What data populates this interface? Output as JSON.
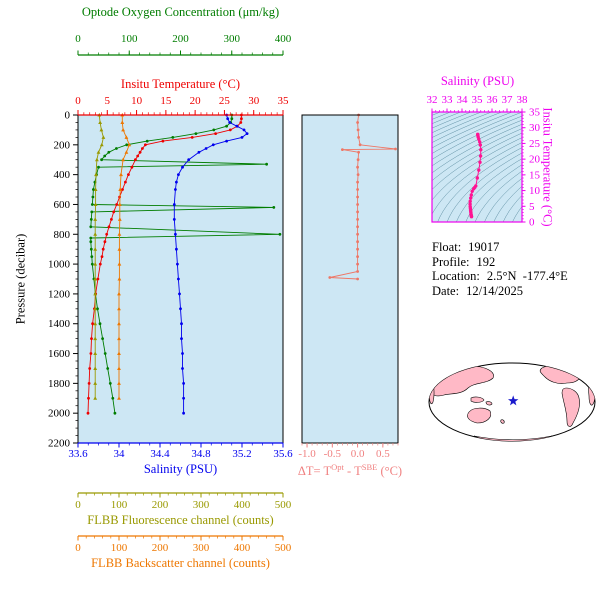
{
  "info": {
    "rows": [
      {
        "label": "Float:",
        "value": "19017"
      },
      {
        "label": "Profile:",
        "value": "192"
      },
      {
        "label": "Location:",
        "value": "2.5°N  -177.4°E"
      },
      {
        "label": "Date:",
        "value": "12/14/2025"
      }
    ]
  },
  "map": {
    "land_color": "#ffb9c6",
    "ocean_color": "#ffffff",
    "outline_color": "#000000",
    "star_color": "#1a1acc",
    "star_lon": -177.4,
    "star_lat": 2.5,
    "center_lon": 180
  },
  "chart_data": [
    {
      "id": "profile",
      "type": "line",
      "background": "#cde7f4",
      "ylabel": "Pressure (decibar)",
      "ylim": [
        0,
        2200
      ],
      "yticks": [
        0,
        200,
        400,
        600,
        800,
        1000,
        1200,
        1400,
        1600,
        1800,
        2000,
        2200
      ],
      "series": [
        {
          "name": "Optode Oxygen Concentration (μm/kg)",
          "color": "#007d00",
          "marker": "circle",
          "xlim": [
            0,
            400
          ],
          "minor": 20,
          "ticks": [
            [
              0,
              "0"
            ],
            [
              100,
              "100"
            ],
            [
              200,
              "200"
            ],
            [
              300,
              "300"
            ],
            [
              400,
              "400"
            ]
          ],
          "points": [
            [
              0,
              300
            ],
            [
              25,
              300
            ],
            [
              50,
              298
            ],
            [
              75,
              290
            ],
            [
              100,
              265
            ],
            [
              125,
              230
            ],
            [
              150,
              185
            ],
            [
              175,
              135
            ],
            [
              200,
              95
            ],
            [
              225,
              75
            ],
            [
              250,
              60
            ],
            [
              275,
              52
            ],
            [
              300,
              46
            ],
            [
              330,
              368
            ],
            [
              350,
              40
            ],
            [
              400,
              36
            ],
            [
              450,
              33
            ],
            [
              500,
              30
            ],
            [
              550,
              29
            ],
            [
              600,
              28
            ],
            [
              620,
              382
            ],
            [
              650,
              27
            ],
            [
              700,
              26
            ],
            [
              750,
              25
            ],
            [
              800,
              394
            ],
            [
              825,
              25
            ],
            [
              850,
              25
            ],
            [
              900,
              26
            ],
            [
              950,
              27
            ],
            [
              1000,
              28
            ],
            [
              1100,
              31
            ],
            [
              1200,
              34
            ],
            [
              1300,
              38
            ],
            [
              1400,
              43
            ],
            [
              1500,
              48
            ],
            [
              1600,
              53
            ],
            [
              1700,
              58
            ],
            [
              1800,
              63
            ],
            [
              1900,
              68
            ],
            [
              2000,
              72
            ]
          ]
        },
        {
          "name": "Insitu Temperature (°C)",
          "color": "#ee0000",
          "marker": "circle",
          "xlim": [
            0,
            35
          ],
          "minor": 1,
          "ticks": [
            [
              0,
              "0"
            ],
            [
              5,
              "5"
            ],
            [
              10,
              "10"
            ],
            [
              15,
              "15"
            ],
            [
              20,
              "20"
            ],
            [
              25,
              "25"
            ],
            [
              30,
              "30"
            ],
            [
              35,
              "35"
            ]
          ],
          "points": [
            [
              0,
              27.9
            ],
            [
              25,
              27.9
            ],
            [
              50,
              27.8
            ],
            [
              75,
              27.2
            ],
            [
              100,
              26.0
            ],
            [
              125,
              23.5
            ],
            [
              150,
              19.5
            ],
            [
              175,
              14.5
            ],
            [
              200,
              11.5
            ],
            [
              225,
              11.0
            ],
            [
              250,
              10.6
            ],
            [
              275,
              10.2
            ],
            [
              300,
              9.8
            ],
            [
              350,
              9.2
            ],
            [
              400,
              8.6
            ],
            [
              450,
              8.1
            ],
            [
              500,
              7.6
            ],
            [
              550,
              7.1
            ],
            [
              600,
              6.6
            ],
            [
              650,
              6.1
            ],
            [
              700,
              5.7
            ],
            [
              750,
              5.3
            ],
            [
              800,
              4.9
            ],
            [
              850,
              4.6
            ],
            [
              900,
              4.3
            ],
            [
              950,
              4.1
            ],
            [
              1000,
              3.8
            ],
            [
              1100,
              3.4
            ],
            [
              1200,
              3.0
            ],
            [
              1300,
              2.8
            ],
            [
              1400,
              2.5
            ],
            [
              1500,
              2.3
            ],
            [
              1600,
              2.2
            ],
            [
              1700,
              2.0
            ],
            [
              1800,
              1.9
            ],
            [
              1900,
              1.8
            ],
            [
              2000,
              1.7
            ]
          ]
        },
        {
          "name": "Salinity (PSU)",
          "color": "#0000ee",
          "marker": "circle",
          "xlim": [
            33.6,
            35.6
          ],
          "minor": 0.1,
          "ticks": [
            [
              33.6,
              "33.6"
            ],
            [
              34,
              "34"
            ],
            [
              34.4,
              "34.4"
            ],
            [
              34.8,
              "34.8"
            ],
            [
              35.2,
              "35.2"
            ],
            [
              35.6,
              "35.6"
            ]
          ],
          "points": [
            [
              0,
              35.05
            ],
            [
              25,
              35.06
            ],
            [
              50,
              35.08
            ],
            [
              75,
              35.15
            ],
            [
              100,
              35.22
            ],
            [
              125,
              35.25
            ],
            [
              150,
              35.2
            ],
            [
              175,
              35.05
            ],
            [
              200,
              34.92
            ],
            [
              225,
              34.85
            ],
            [
              250,
              34.78
            ],
            [
              300,
              34.68
            ],
            [
              350,
              34.62
            ],
            [
              400,
              34.58
            ],
            [
              450,
              34.56
            ],
            [
              500,
              34.55
            ],
            [
              600,
              34.54
            ],
            [
              700,
              34.54
            ],
            [
              800,
              34.55
            ],
            [
              900,
              34.56
            ],
            [
              1000,
              34.57
            ],
            [
              1100,
              34.58
            ],
            [
              1200,
              34.59
            ],
            [
              1300,
              34.6
            ],
            [
              1400,
              34.61
            ],
            [
              1500,
              34.61
            ],
            [
              1600,
              34.62
            ],
            [
              1700,
              34.62
            ],
            [
              1800,
              34.63
            ],
            [
              1900,
              34.63
            ],
            [
              2000,
              34.63
            ]
          ]
        },
        {
          "name": "FLBB Fluorescence channel (counts)",
          "color": "#999900",
          "marker": "triangle",
          "xlim": [
            0,
            500
          ],
          "minor": 20,
          "ticks": [
            [
              0,
              "0"
            ],
            [
              100,
              "100"
            ],
            [
              200,
              "200"
            ],
            [
              300,
              "300"
            ],
            [
              400,
              "400"
            ],
            [
              500,
              "500"
            ]
          ],
          "points": [
            [
              0,
              52
            ],
            [
              50,
              54
            ],
            [
              100,
              57
            ],
            [
              150,
              62
            ],
            [
              200,
              58
            ],
            [
              250,
              50
            ],
            [
              300,
              46
            ],
            [
              400,
              44
            ],
            [
              500,
              43
            ],
            [
              600,
              43
            ],
            [
              700,
              42
            ],
            [
              800,
              42
            ],
            [
              900,
              42
            ],
            [
              1000,
              42
            ],
            [
              1100,
              42
            ],
            [
              1200,
              42
            ],
            [
              1300,
              42
            ],
            [
              1400,
              42
            ],
            [
              1500,
              42
            ],
            [
              1600,
              42
            ],
            [
              1700,
              42
            ],
            [
              1800,
              42
            ],
            [
              1900,
              42
            ]
          ]
        },
        {
          "name": "FLBB Backscatter channel (counts)",
          "color": "#ee7700",
          "marker": "triangle",
          "xlim": [
            0,
            500
          ],
          "minor": 20,
          "ticks": [
            [
              0,
              "0"
            ],
            [
              100,
              "100"
            ],
            [
              200,
              "200"
            ],
            [
              300,
              "300"
            ],
            [
              400,
              "400"
            ],
            [
              500,
              "500"
            ]
          ],
          "points": [
            [
              0,
              108
            ],
            [
              50,
              108
            ],
            [
              100,
              110
            ],
            [
              150,
              118
            ],
            [
              200,
              125
            ],
            [
              250,
              118
            ],
            [
              300,
              110
            ],
            [
              400,
              105
            ],
            [
              500,
              103
            ],
            [
              600,
              102
            ],
            [
              700,
              102
            ],
            [
              800,
              101
            ],
            [
              900,
              101
            ],
            [
              1000,
              101
            ],
            [
              1100,
              101
            ],
            [
              1200,
              100
            ],
            [
              1300,
              100
            ],
            [
              1400,
              100
            ],
            [
              1500,
              100
            ],
            [
              1600,
              100
            ],
            [
              1700,
              100
            ],
            [
              1800,
              100
            ],
            [
              1900,
              100
            ]
          ]
        }
      ]
    },
    {
      "id": "delta_t",
      "type": "line",
      "background": "#cde7f4",
      "xlabel_parts": {
        "pre": "ΔT= T",
        "sup1": "Opt",
        "mid": " - T",
        "sup2": "SBE",
        "post": " (°C)"
      },
      "color": "#ee7766",
      "tick_color": "#f08080",
      "xlim": [
        -1.1,
        0.8
      ],
      "minor": 0.1,
      "ticks": [
        [
          -1.0,
          "-1.0"
        ],
        [
          -0.5,
          "-0.5"
        ],
        [
          0.0,
          "0.0"
        ],
        [
          0.5,
          "0.5"
        ]
      ],
      "ylim": [
        0,
        2200
      ],
      "points": [
        [
          0,
          0.02
        ],
        [
          50,
          0.0
        ],
        [
          100,
          0.01
        ],
        [
          150,
          0.02
        ],
        [
          200,
          0.05
        ],
        [
          228,
          0.75
        ],
        [
          232,
          -0.3
        ],
        [
          250,
          0.02
        ],
        [
          300,
          0.01
        ],
        [
          350,
          0.0
        ],
        [
          400,
          0.01
        ],
        [
          450,
          0.0
        ],
        [
          500,
          0.0
        ],
        [
          550,
          0.0
        ],
        [
          600,
          0.0
        ],
        [
          650,
          0.0
        ],
        [
          700,
          0.0
        ],
        [
          750,
          0.0
        ],
        [
          800,
          0.0
        ],
        [
          850,
          0.0
        ],
        [
          900,
          0.0
        ],
        [
          950,
          0.0
        ],
        [
          1000,
          0.0
        ],
        [
          1050,
          0.0
        ],
        [
          1090,
          -0.55
        ],
        [
          1100,
          0.0
        ]
      ]
    },
    {
      "id": "ts_diagram",
      "type": "scatter",
      "background": "#cde7f4",
      "xlabel": "Salinity (PSU)",
      "ylabel": "Insitu Temperature (°C)",
      "frame_color": "#ee00ee",
      "point_color": "#ff1493",
      "contour_color": "#4a7f94",
      "xlim": [
        32,
        38
      ],
      "ylim": [
        0,
        35
      ],
      "xminor": 0.25,
      "yminor": 1,
      "xticks": [
        [
          32,
          "32"
        ],
        [
          33,
          "33"
        ],
        [
          34,
          "34"
        ],
        [
          35,
          "35"
        ],
        [
          36,
          "36"
        ],
        [
          37,
          "37"
        ],
        [
          38,
          "38"
        ]
      ],
      "yticks": [
        [
          0,
          "0"
        ],
        [
          5,
          "5"
        ],
        [
          10,
          "10"
        ],
        [
          15,
          "15"
        ],
        [
          20,
          "20"
        ],
        [
          25,
          "25"
        ],
        [
          30,
          "30"
        ],
        [
          35,
          "35"
        ]
      ],
      "contours": {
        "min": 18,
        "max": 30,
        "step": 0.5
      },
      "points": [
        [
          35.05,
          27.9
        ],
        [
          35.06,
          27.5
        ],
        [
          35.08,
          27.0
        ],
        [
          35.12,
          26.3
        ],
        [
          35.18,
          25.5
        ],
        [
          35.22,
          24.5
        ],
        [
          35.25,
          23.0
        ],
        [
          35.24,
          21.0
        ],
        [
          35.2,
          19.0
        ],
        [
          35.12,
          16.5
        ],
        [
          35.02,
          14.0
        ],
        [
          34.92,
          11.5
        ],
        [
          34.85,
          11.0
        ],
        [
          34.78,
          10.6
        ],
        [
          34.68,
          9.8
        ],
        [
          34.62,
          8.6
        ],
        [
          34.58,
          7.6
        ],
        [
          34.55,
          6.6
        ],
        [
          34.54,
          5.7
        ],
        [
          34.55,
          4.9
        ],
        [
          34.56,
          4.3
        ],
        [
          34.57,
          3.8
        ],
        [
          34.58,
          3.4
        ],
        [
          34.59,
          3.0
        ],
        [
          34.6,
          2.5
        ],
        [
          34.61,
          2.3
        ],
        [
          34.62,
          2.0
        ],
        [
          34.63,
          1.8
        ],
        [
          34.63,
          1.7
        ]
      ]
    }
  ]
}
